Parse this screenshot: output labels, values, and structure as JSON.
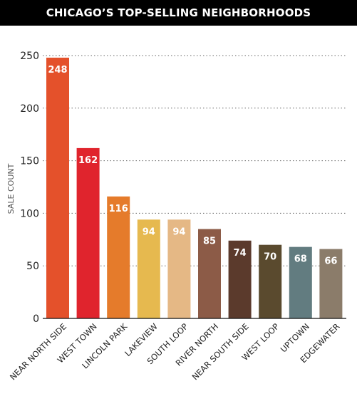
{
  "chart_data": {
    "type": "bar",
    "title": "CHICAGO’S TOP-SELLING NEIGHBORHOODS",
    "ylabel": "SALE COUNT",
    "xlabel": "",
    "ylim": [
      0,
      250
    ],
    "yticks": [
      0,
      50,
      100,
      150,
      200,
      250
    ],
    "grid": true,
    "categories": [
      "NEAR NORTH SIDE",
      "WEST TOWN",
      "LINCOLN PARK",
      "LAKEVIEW",
      "SOUTH LOOP",
      "RIVER NORTH",
      "NEAR SOUTH SIDE",
      "WEST LOOP",
      "UPTOWN",
      "EDGEWATER"
    ],
    "values": [
      248,
      162,
      116,
      94,
      94,
      85,
      74,
      70,
      68,
      66
    ],
    "colors": [
      "#e4512b",
      "#e0242d",
      "#e57b2b",
      "#e6b94f",
      "#e5b885",
      "#8c5b47",
      "#5b3a2c",
      "#5a4a2e",
      "#627c80",
      "#8b7c6a"
    ]
  }
}
